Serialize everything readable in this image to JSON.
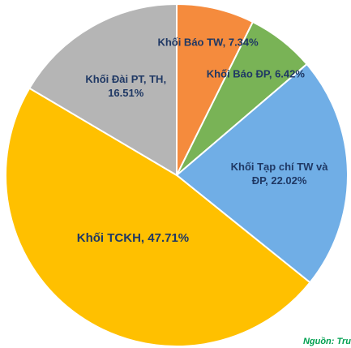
{
  "chart_data": {
    "type": "pie",
    "categories": [
      "Khối Báo TW,",
      "Khối Báo ĐP,",
      "Khối Tạp chí TW và ĐP,",
      "Khối TCKH,",
      "Khối Đài PT, TH,"
    ],
    "values": [
      7.34,
      6.42,
      22.02,
      47.71,
      16.51
    ],
    "value_labels": [
      "7.34%",
      "6.42%",
      "22.02%",
      "47.71%",
      "16.51%"
    ],
    "colors": [
      "#f58b3d",
      "#79b356",
      "#70aee6",
      "#ffc000",
      "#b5b5b5"
    ],
    "source": "Nguồn: Tru"
  }
}
